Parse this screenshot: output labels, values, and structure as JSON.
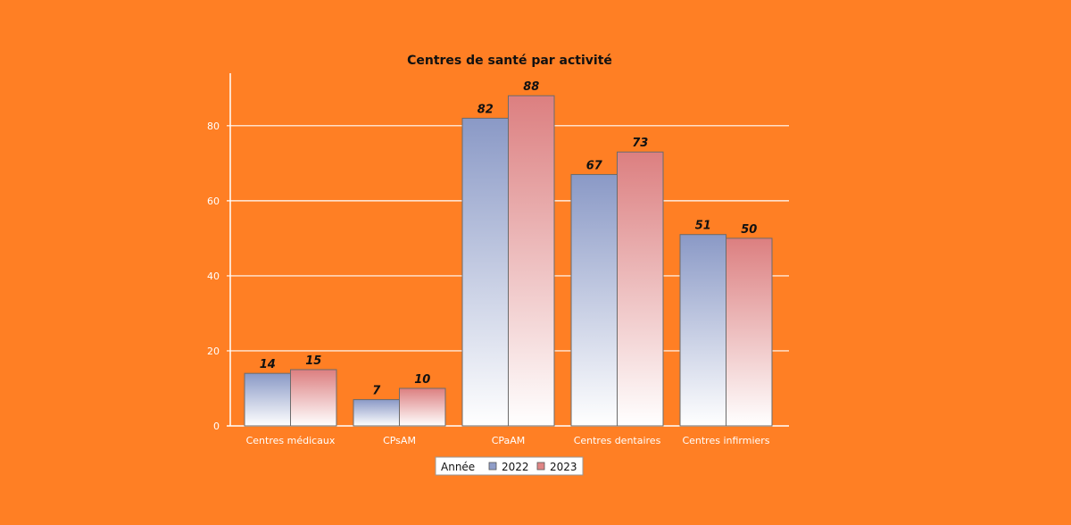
{
  "colors": {
    "background": "#ff7f24",
    "series_2022": "#8f9dc8",
    "series_2023": "#df8585",
    "gridline": "#ffffff"
  },
  "chart_data": {
    "type": "bar",
    "title": "Centres de santé par activité",
    "categories": [
      "Centres médicaux",
      "CPsAM",
      "CPaAM",
      "Centres dentaires",
      "Centres infirmiers"
    ],
    "series": [
      {
        "name": "2022",
        "values": [
          14,
          7,
          82,
          67,
          51
        ]
      },
      {
        "name": "2023",
        "values": [
          15,
          10,
          88,
          73,
          50
        ]
      }
    ],
    "xlabel": "",
    "ylabel": "",
    "ylim": [
      0,
      94
    ],
    "yticks": [
      0,
      20,
      40,
      60,
      80
    ],
    "grid": true,
    "legend": {
      "title": "Année",
      "position": "bottom-center"
    },
    "data_labels": true
  }
}
